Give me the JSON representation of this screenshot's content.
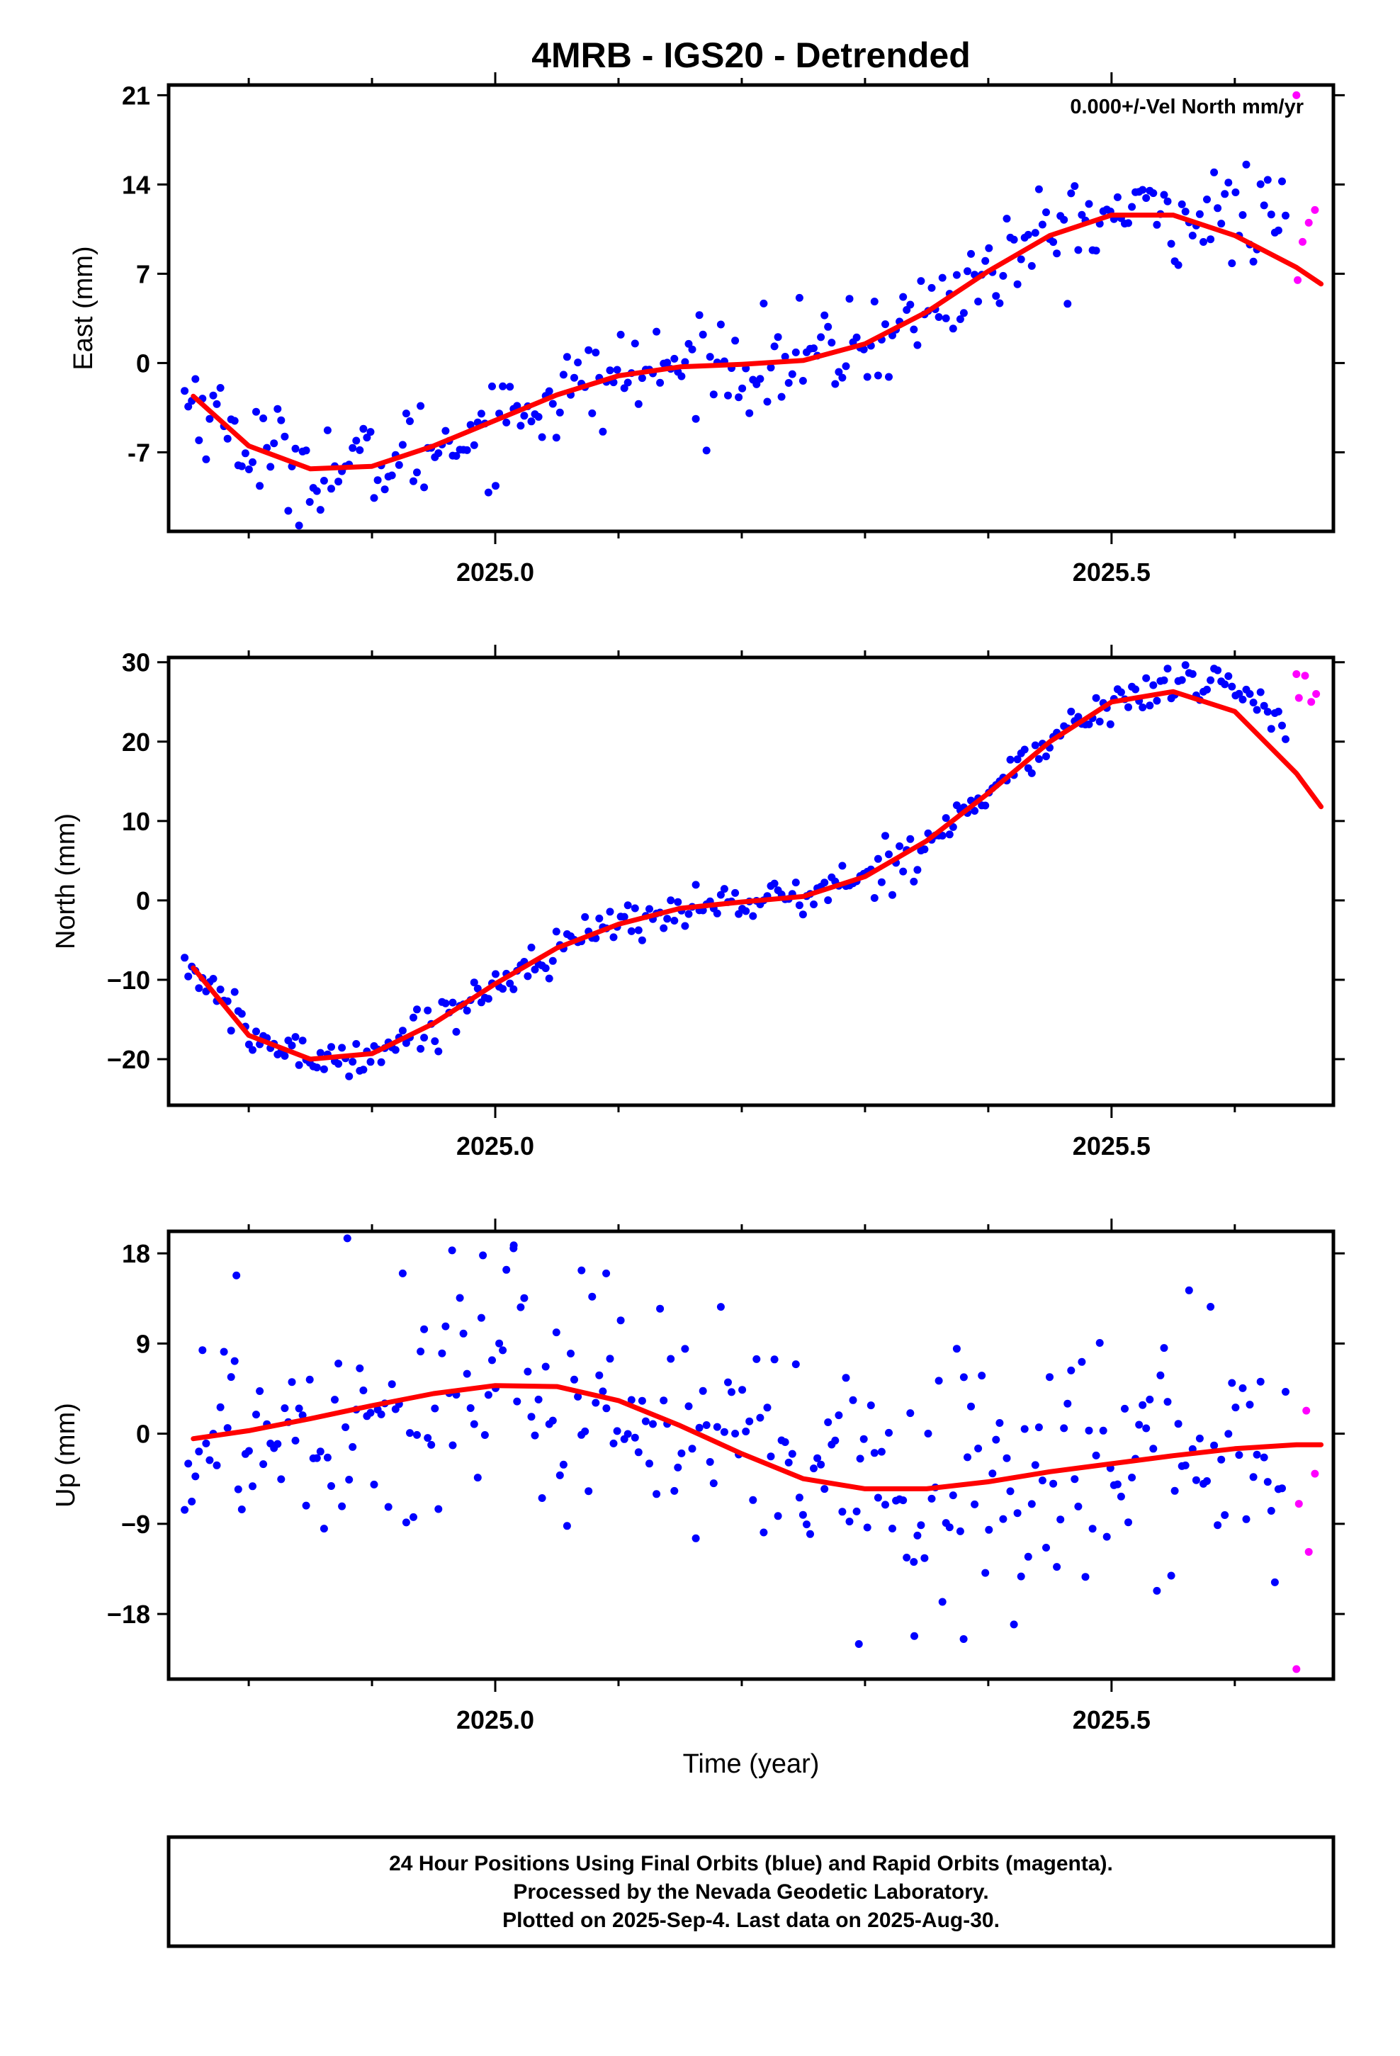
{
  "title": "4MRB - IGS20 - Detrended",
  "xlabel": "Time (year)",
  "annotation": "0.000+/-Vel North mm/yr",
  "footer": [
    "24 Hour Positions Using Final Orbits (blue) and Rapid Orbits (magenta).",
    "Processed by the Nevada Geodetic Laboratory.",
    "Plotted on 2025-Sep-4. Last data on 2025-Aug-30."
  ],
  "colors": {
    "final_orbits": "#0000ff",
    "rapid_orbits": "#ff00ff",
    "model": "#ff0000"
  },
  "chart_data": [
    {
      "type": "scatter",
      "ylabel": "East (mm)",
      "xlim": [
        2024.735,
        2025.68
      ],
      "ylim": [
        -13.2,
        21.8
      ],
      "xticks": [
        2025.0,
        2025.5
      ],
      "xtick_labels": [
        "2025.0",
        "2025.5"
      ],
      "yticks": [
        -7,
        0,
        7,
        14,
        21
      ],
      "ytick_labels": [
        "-7",
        "0",
        "7",
        "14",
        "21"
      ],
      "rapid": [
        [
          2025.65,
          21.0
        ],
        [
          2025.651,
          6.5
        ],
        [
          2025.655,
          9.5
        ],
        [
          2025.66,
          11.0
        ],
        [
          2025.665,
          12.0
        ]
      ],
      "fit": [
        [
          2024.755,
          -2.6
        ],
        [
          2024.8,
          -6.5
        ],
        [
          2024.85,
          -8.3
        ],
        [
          2024.9,
          -8.1
        ],
        [
          2024.95,
          -6.5
        ],
        [
          2025.0,
          -4.5
        ],
        [
          2025.05,
          -2.5
        ],
        [
          2025.1,
          -1.0
        ],
        [
          2025.15,
          -0.3
        ],
        [
          2025.2,
          -0.1
        ],
        [
          2025.25,
          0.2
        ],
        [
          2025.3,
          1.5
        ],
        [
          2025.35,
          4.0
        ],
        [
          2025.4,
          7.2
        ],
        [
          2025.45,
          10.0
        ],
        [
          2025.5,
          11.6
        ],
        [
          2025.55,
          11.6
        ],
        [
          2025.6,
          10.0
        ],
        [
          2025.65,
          7.5
        ],
        [
          2025.67,
          6.2
        ]
      ]
    },
    {
      "type": "scatter",
      "ylabel": "North (mm)",
      "xlim": [
        2024.735,
        2025.68
      ],
      "ylim": [
        -25.8,
        30.6
      ],
      "xticks": [
        2025.0,
        2025.5
      ],
      "xtick_labels": [
        "2025.0",
        "2025.5"
      ],
      "yticks": [
        -20,
        -10,
        0,
        10,
        20,
        30
      ],
      "ytick_labels": [
        "−20",
        "−10",
        "0",
        "10",
        "20",
        "30"
      ],
      "rapid": [
        [
          2025.65,
          28.5
        ],
        [
          2025.652,
          25.5
        ],
        [
          2025.657,
          28.3
        ],
        [
          2025.662,
          25.0
        ],
        [
          2025.666,
          26.0
        ]
      ],
      "fit": [
        [
          2024.755,
          -8.5
        ],
        [
          2024.8,
          -17.0
        ],
        [
          2024.85,
          -20.0
        ],
        [
          2024.9,
          -19.3
        ],
        [
          2024.95,
          -15.5
        ],
        [
          2025.0,
          -10.5
        ],
        [
          2025.05,
          -6.0
        ],
        [
          2025.1,
          -3.0
        ],
        [
          2025.15,
          -1.0
        ],
        [
          2025.2,
          -0.2
        ],
        [
          2025.25,
          0.5
        ],
        [
          2025.3,
          3.0
        ],
        [
          2025.35,
          7.5
        ],
        [
          2025.4,
          13.5
        ],
        [
          2025.45,
          20.0
        ],
        [
          2025.5,
          25.0
        ],
        [
          2025.55,
          26.3
        ],
        [
          2025.6,
          23.8
        ],
        [
          2025.65,
          16.0
        ],
        [
          2025.67,
          11.8
        ]
      ]
    },
    {
      "type": "scatter",
      "ylabel": "Up (mm)",
      "xlim": [
        2024.735,
        2025.68
      ],
      "ylim": [
        -24.5,
        20.2
      ],
      "xticks": [
        2025.0,
        2025.5
      ],
      "xtick_labels": [
        "2025.0",
        "2025.5"
      ],
      "yticks": [
        -18,
        -9,
        0,
        9,
        18
      ],
      "ytick_labels": [
        "−18",
        "−9",
        "0",
        "9",
        "18"
      ],
      "rapid": [
        [
          2025.65,
          -23.5
        ],
        [
          2025.652,
          -7.0
        ],
        [
          2025.658,
          2.3
        ],
        [
          2025.66,
          -11.8
        ],
        [
          2025.665,
          -4.0
        ]
      ],
      "fit": [
        [
          2024.755,
          -0.5
        ],
        [
          2024.8,
          0.3
        ],
        [
          2024.85,
          1.5
        ],
        [
          2024.9,
          2.8
        ],
        [
          2024.95,
          4.0
        ],
        [
          2025.0,
          4.8
        ],
        [
          2025.05,
          4.7
        ],
        [
          2025.1,
          3.3
        ],
        [
          2025.15,
          0.8
        ],
        [
          2025.2,
          -2.0
        ],
        [
          2025.25,
          -4.5
        ],
        [
          2025.3,
          -5.5
        ],
        [
          2025.35,
          -5.5
        ],
        [
          2025.4,
          -4.8
        ],
        [
          2025.45,
          -3.8
        ],
        [
          2025.5,
          -3.0
        ],
        [
          2025.55,
          -2.2
        ],
        [
          2025.6,
          -1.5
        ],
        [
          2025.65,
          -1.1
        ],
        [
          2025.67,
          -1.1
        ]
      ]
    }
  ]
}
